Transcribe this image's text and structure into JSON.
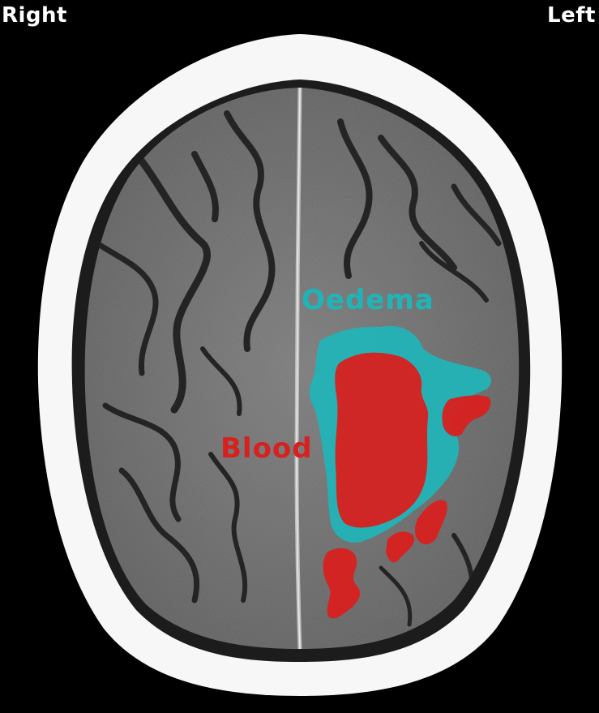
{
  "orientation": {
    "right_label": "Right",
    "left_label": "Left"
  },
  "annotations": {
    "oedema": {
      "label": "Oedema",
      "color": "#1fb5b8"
    },
    "blood": {
      "label": "Blood",
      "color": "#d8201e"
    }
  },
  "colors": {
    "background": "#000000",
    "skull": "#f7f7f7",
    "brain_tissue": "#6e6e6e",
    "sulci": "#232323",
    "orientation_text": "#ffffff"
  }
}
